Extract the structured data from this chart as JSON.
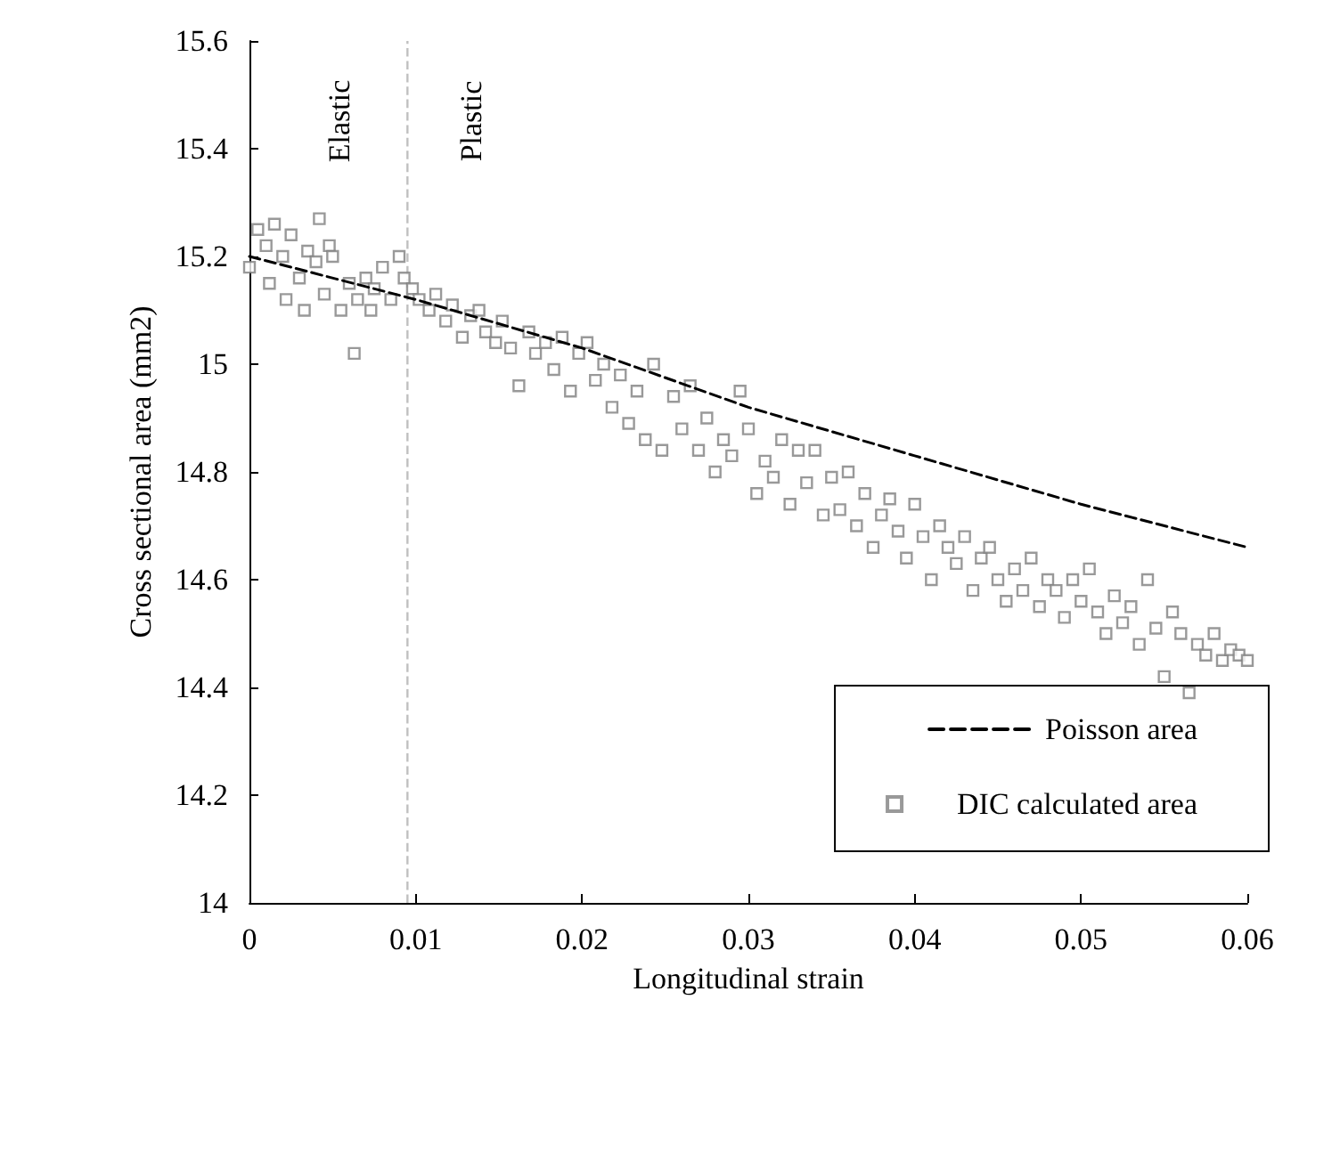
{
  "chart_data": {
    "type": "scatter",
    "xlabel": "Longitudinal strain",
    "ylabel": "Cross sectional area (mm2)",
    "xlim": [
      0,
      0.06
    ],
    "xticks": [
      0,
      0.01,
      0.02,
      0.03,
      0.04,
      0.05,
      0.06
    ],
    "ylim": [
      14,
      15.6
    ],
    "yticks": [
      14,
      14.2,
      14.4,
      14.6,
      14.8,
      15,
      15.2,
      15.4,
      15.6
    ],
    "grid": false,
    "legend": "bottom right",
    "marker": "square",
    "ref_lines": [
      {
        "axis": "x",
        "value": 0.0095,
        "color": "#c0c0c0",
        "line_style": "dashed"
      }
    ],
    "annotations": [
      "Elastic",
      "Plastic"
    ],
    "series": [
      {
        "name": "Poisson area",
        "type": "line",
        "color": "#000000",
        "line_style": "dashed",
        "marker": "none",
        "x": [
          0,
          0.01,
          0.02,
          0.03,
          0.04,
          0.05,
          0.06
        ],
        "values": [
          15.2,
          15.12,
          15.03,
          14.92,
          14.83,
          14.74,
          14.66
        ]
      },
      {
        "name": "DIC calculated area",
        "color": "#808080",
        "x": [
          0,
          0.0005,
          0.001,
          0.0012,
          0.0015,
          0.002,
          0.0022,
          0.0025,
          0.003,
          0.0033,
          0.0035,
          0.004,
          0.0042,
          0.0045,
          0.0048,
          0.005,
          0.0055,
          0.006,
          0.0063,
          0.0065,
          0.007,
          0.0073,
          0.0075,
          0.008,
          0.0085,
          0.009,
          0.0093,
          0.0098,
          0.0102,
          0.0108,
          0.0112,
          0.0118,
          0.0122,
          0.0128,
          0.0133,
          0.0138,
          0.0142,
          0.0148,
          0.0152,
          0.0157,
          0.0162,
          0.0168,
          0.0172,
          0.0178,
          0.0183,
          0.0188,
          0.0193,
          0.0198,
          0.0203,
          0.0208,
          0.0213,
          0.0218,
          0.0223,
          0.0228,
          0.0233,
          0.0238,
          0.0243,
          0.0248,
          0.0255,
          0.026,
          0.0265,
          0.027,
          0.0275,
          0.028,
          0.0285,
          0.029,
          0.0295,
          0.03,
          0.0305,
          0.031,
          0.0315,
          0.032,
          0.0325,
          0.033,
          0.0335,
          0.034,
          0.0345,
          0.035,
          0.0355,
          0.036,
          0.0365,
          0.037,
          0.0375,
          0.038,
          0.0385,
          0.039,
          0.0395,
          0.04,
          0.0405,
          0.041,
          0.0415,
          0.042,
          0.0425,
          0.043,
          0.0435,
          0.044,
          0.0445,
          0.045,
          0.0455,
          0.046,
          0.0465,
          0.047,
          0.0475,
          0.048,
          0.0485,
          0.049,
          0.0495,
          0.05,
          0.0505,
          0.051,
          0.0515,
          0.052,
          0.0525,
          0.053,
          0.0535,
          0.054,
          0.0545,
          0.055,
          0.0555,
          0.056,
          0.0565,
          0.057,
          0.0575,
          0.058,
          0.0585,
          0.059,
          0.0595,
          0.06
        ],
        "values": [
          15.18,
          15.25,
          15.22,
          15.15,
          15.26,
          15.2,
          15.12,
          15.24,
          15.16,
          15.1,
          15.21,
          15.19,
          15.27,
          15.13,
          15.22,
          15.2,
          15.1,
          15.15,
          15.02,
          15.12,
          15.16,
          15.1,
          15.14,
          15.18,
          15.12,
          15.2,
          15.16,
          15.14,
          15.12,
          15.1,
          15.13,
          15.08,
          15.11,
          15.05,
          15.09,
          15.1,
          15.06,
          15.04,
          15.08,
          15.03,
          14.96,
          15.06,
          15.02,
          15.04,
          14.99,
          15.05,
          14.95,
          15.02,
          15.04,
          14.97,
          15,
          14.92,
          14.98,
          14.89,
          14.95,
          14.86,
          15,
          14.84,
          14.94,
          14.88,
          14.96,
          14.84,
          14.9,
          14.8,
          14.86,
          14.83,
          14.95,
          14.88,
          14.76,
          14.82,
          14.79,
          14.86,
          14.74,
          14.84,
          14.78,
          14.84,
          14.72,
          14.79,
          14.73,
          14.8,
          14.7,
          14.76,
          14.66,
          14.72,
          14.75,
          14.69,
          14.64,
          14.74,
          14.68,
          14.6,
          14.7,
          14.66,
          14.63,
          14.68,
          14.58,
          14.64,
          14.66,
          14.6,
          14.56,
          14.62,
          14.58,
          14.64,
          14.55,
          14.6,
          14.58,
          14.53,
          14.6,
          14.56,
          14.62,
          14.54,
          14.5,
          14.57,
          14.52,
          14.55,
          14.48,
          14.6,
          14.51,
          14.42,
          14.54,
          14.5,
          14.39,
          14.48,
          14.46,
          14.5,
          14.45,
          14.47,
          14.46,
          14.45
        ]
      }
    ]
  }
}
